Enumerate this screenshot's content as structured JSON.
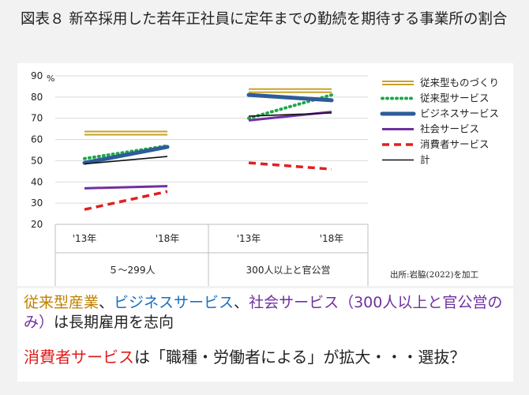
{
  "header": {
    "title": "図表８  新卒採用した若年正社員に定年までの勤続を期待する事業所の割合"
  },
  "chart_data": {
    "type": "line",
    "yunit": "%",
    "ylim": [
      20,
      90
    ],
    "yticks": [
      20,
      30,
      40,
      50,
      60,
      70,
      80,
      90
    ],
    "grid": true,
    "legend_position": "right",
    "groups": [
      {
        "label": "５～299人",
        "years": [
          "'13年",
          "'18年"
        ]
      },
      {
        "label": "300人以上と官公営",
        "years": [
          "'13年",
          "'18年"
        ]
      }
    ],
    "series": [
      {
        "name": "従来型ものづくり",
        "color": "#c9a227",
        "style": "double",
        "values": [
          [
            63,
            63
          ],
          [
            83,
            83
          ]
        ]
      },
      {
        "name": "従来型サービス",
        "color": "#1fa84a",
        "style": "dotted",
        "values": [
          [
            51,
            57
          ],
          [
            70,
            81
          ]
        ]
      },
      {
        "name": "ビジネスサービス",
        "color": "#2e5c9a",
        "style": "thick",
        "values": [
          [
            49,
            56.5
          ],
          [
            81,
            78.5
          ]
        ]
      },
      {
        "name": "社会サービス",
        "color": "#7030a0",
        "style": "solid",
        "values": [
          [
            37,
            38
          ],
          [
            69,
            73
          ]
        ]
      },
      {
        "name": "消費者サービス",
        "color": "#e02020",
        "style": "dashed",
        "values": [
          [
            27,
            35.5
          ],
          [
            49,
            46
          ]
        ]
      },
      {
        "name": "計",
        "color": "#111111",
        "style": "thin",
        "values": [
          [
            48.5,
            52
          ],
          [
            71,
            72.5
          ]
        ]
      }
    ],
    "source": "出所:岩脇(2022)を加工"
  },
  "summary": {
    "line1": [
      {
        "text": "従来型産業",
        "color": "#c08000"
      },
      {
        "text": "、",
        "color": "#222222"
      },
      {
        "text": "ビジネスサービス",
        "color": "#1a6fc0"
      },
      {
        "text": "、",
        "color": "#222222"
      },
      {
        "text": "社会サービス（300人以上と官公営のみ）",
        "color": "#7030a0"
      },
      {
        "text": "は長期雇用を志向",
        "color": "#222222"
      }
    ],
    "line2": [
      {
        "text": "消費者サービス",
        "color": "#e01b1b"
      },
      {
        "text": "は「職種・労働者による」が拡大・・・選抜？",
        "color": "#222222"
      }
    ]
  }
}
